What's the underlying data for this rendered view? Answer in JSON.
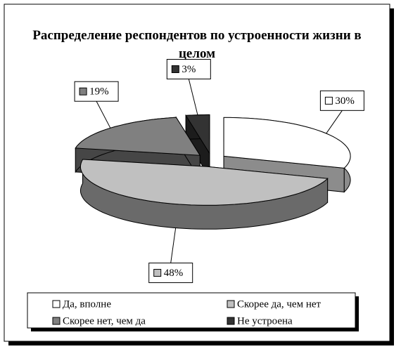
{
  "chart_data": {
    "type": "pie3d",
    "title": "Распределение респондентов по устроенности жизни в целом",
    "categories": [
      "Да, вполне",
      "Скорее да, чем нет",
      "Скорее нет, чем да",
      "Не устроена"
    ],
    "values": [
      30,
      48,
      19,
      3
    ],
    "value_labels": [
      "30%",
      "48%",
      "19%",
      "3%"
    ],
    "colors": [
      "#ffffff",
      "#c0c0c0",
      "#808080",
      "#333333"
    ],
    "legend": "bottom"
  }
}
